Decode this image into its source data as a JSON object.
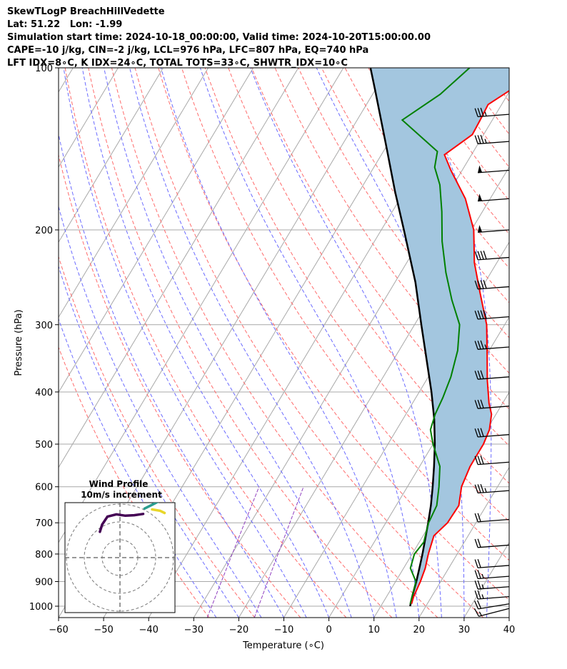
{
  "header": {
    "line1": "SkewTLogP BreachHillVedette",
    "line2": "Lat: 51.22   Lon: -1.99",
    "line3": "Simulation start time: 2024-10-18_00:00:00, Valid time: 2024-10-20T15:00:00.00",
    "line4": "CAPE=-10 j/kg, CIN=-2 j/kg, LCL=976 hPa, LFC=807 hPa, EQ=740 hPa",
    "line5": "LFT IDX=8∘C, K IDX=24∘C, TOTAL TOTS=33∘C, SHWTR_IDX=10∘C"
  },
  "chart_data": [
    {
      "type": "line",
      "subtype": "skew-t log-p",
      "xlabel": "Temperature (∘C)",
      "ylabel": "Pressure (hPa)",
      "xlim": [
        -60,
        40
      ],
      "ylim": [
        1050,
        100
      ],
      "y_scale": "log",
      "x_ticks": [
        -60,
        -50,
        -40,
        -30,
        -20,
        -10,
        0,
        10,
        20,
        30,
        40
      ],
      "y_ticks": [
        100,
        200,
        300,
        400,
        500,
        600,
        700,
        800,
        900,
        1000
      ],
      "grid": true,
      "colors": {
        "temperature": "#ff0000",
        "dewpoint": "#008000",
        "parcel": "#000000",
        "cape_fill": "#a3c6df",
        "dry_adiabats": "#ff6b6b",
        "moist_adiabats": "#6b6bff",
        "mixing_ratio": "#9040c0",
        "isotherms": "#a8a8a8"
      },
      "series": [
        {
          "key": "temperature",
          "points": [
            [
              16.5,
              990
            ],
            [
              16,
              960
            ],
            [
              15.5,
              900
            ],
            [
              14.8,
              850
            ],
            [
              13.6,
              800
            ],
            [
              12.4,
              740
            ],
            [
              13.7,
              700
            ],
            [
              13.9,
              650
            ],
            [
              12,
              600
            ],
            [
              11.2,
              550
            ],
            [
              11.2,
              500
            ],
            [
              10.6,
              470
            ],
            [
              9,
              440
            ],
            [
              7,
              420
            ],
            [
              3.5,
              380
            ],
            [
              0,
              340
            ],
            [
              -4,
              300
            ],
            [
              -10,
              260
            ],
            [
              -15,
              230
            ],
            [
              -19.5,
              200
            ],
            [
              -25.5,
              175
            ],
            [
              -32.5,
              155
            ],
            [
              -36,
              145
            ],
            [
              -32.5,
              133
            ],
            [
              -32.7,
              125
            ],
            [
              -33,
              117
            ],
            [
              -30,
              110
            ],
            [
              -28,
              100
            ]
          ]
        },
        {
          "key": "dewpoint",
          "points": [
            [
              16.2,
              990
            ],
            [
              14.5,
              900
            ],
            [
              11.5,
              850
            ],
            [
              10.5,
              800
            ],
            [
              11,
              760
            ],
            [
              10.5,
              740
            ],
            [
              9.5,
              700
            ],
            [
              9,
              650
            ],
            [
              7,
              600
            ],
            [
              4.5,
              550
            ],
            [
              0,
              500
            ],
            [
              -2.5,
              470
            ],
            [
              -3.5,
              440
            ],
            [
              -4,
              410
            ],
            [
              -5,
              375
            ],
            [
              -7,
              335
            ],
            [
              -10,
              300
            ],
            [
              -15,
              270
            ],
            [
              -20,
              240
            ],
            [
              -25,
              210
            ],
            [
              -29,
              185
            ],
            [
              -33,
              165
            ],
            [
              -36.5,
              153
            ],
            [
              -38,
              143
            ],
            [
              -50,
              125
            ],
            [
              -45,
              112
            ],
            [
              -42,
              100
            ]
          ]
        },
        {
          "key": "parcel",
          "points": [
            [
              16.5,
              1000
            ],
            [
              15.5,
              950
            ],
            [
              14.6,
              900
            ],
            [
              13.5,
              850
            ],
            [
              12.3,
              800
            ],
            [
              10.9,
              750
            ],
            [
              9.4,
              700
            ],
            [
              7.7,
              650
            ],
            [
              5.6,
              600
            ],
            [
              3.2,
              550
            ],
            [
              0.4,
              500
            ],
            [
              -3,
              450
            ],
            [
              -7.3,
              400
            ],
            [
              -12.5,
              350
            ],
            [
              -18.5,
              300
            ],
            [
              -25.5,
              250
            ],
            [
              -35,
              200
            ],
            [
              -42,
              170
            ],
            [
              -50,
              140
            ],
            [
              -60,
              110
            ],
            [
              -64,
              100
            ]
          ]
        }
      ],
      "wind_barbs": [
        {
          "p": 1010,
          "speed_kt": 15,
          "dir_deg": 250
        },
        {
          "p": 990,
          "speed_kt": 20,
          "dir_deg": 245
        },
        {
          "p": 960,
          "speed_kt": 25,
          "dir_deg": 240
        },
        {
          "p": 920,
          "speed_kt": 25,
          "dir_deg": 240
        },
        {
          "p": 880,
          "speed_kt": 25,
          "dir_deg": 240
        },
        {
          "p": 840,
          "speed_kt": 20,
          "dir_deg": 240
        },
        {
          "p": 770,
          "speed_kt": 20,
          "dir_deg": 240
        },
        {
          "p": 690,
          "speed_kt": 20,
          "dir_deg": 240
        },
        {
          "p": 610,
          "speed_kt": 35,
          "dir_deg": 240
        },
        {
          "p": 540,
          "speed_kt": 30,
          "dir_deg": 240
        },
        {
          "p": 480,
          "speed_kt": 30,
          "dir_deg": 240
        },
        {
          "p": 425,
          "speed_kt": 30,
          "dir_deg": 240
        },
        {
          "p": 375,
          "speed_kt": 30,
          "dir_deg": 240
        },
        {
          "p": 330,
          "speed_kt": 35,
          "dir_deg": 240
        },
        {
          "p": 290,
          "speed_kt": 40,
          "dir_deg": 240
        },
        {
          "p": 255,
          "speed_kt": 40,
          "dir_deg": 240
        },
        {
          "p": 225,
          "speed_kt": 40,
          "dir_deg": 240
        },
        {
          "p": 200,
          "speed_kt": 50,
          "dir_deg": 240
        },
        {
          "p": 175,
          "speed_kt": 50,
          "dir_deg": 240
        },
        {
          "p": 155,
          "speed_kt": 50,
          "dir_deg": 240
        },
        {
          "p": 137,
          "speed_kt": 35,
          "dir_deg": 240
        },
        {
          "p": 122,
          "speed_kt": 35,
          "dir_deg": 240
        }
      ]
    },
    {
      "type": "scatter",
      "subtype": "hodograph",
      "title": "Wind Profile",
      "subtitle": "10m/s increment",
      "rings": 3,
      "axes": "dashed crosshair",
      "series": [
        {
          "key": "segment-1",
          "color": "#440154",
          "points": [
            [
              -0.45,
              0.58
            ],
            [
              -0.4,
              0.74
            ],
            [
              -0.28,
              0.92
            ],
            [
              -0.08,
              0.97
            ],
            [
              0.12,
              0.94
            ],
            [
              0.32,
              0.95
            ],
            [
              0.52,
              0.98
            ]
          ]
        },
        {
          "key": "segment-2",
          "color": "#2a9d8f",
          "points": [
            [
              0.55,
              1.1
            ],
            [
              0.75,
              1.2
            ],
            [
              0.98,
              1.32
            ]
          ]
        },
        {
          "key": "segment-3",
          "color": "#e8d62a",
          "points": [
            [
              0.72,
              1.08
            ],
            [
              0.9,
              1.05
            ],
            [
              1.0,
              1.0
            ]
          ]
        }
      ]
    }
  ]
}
